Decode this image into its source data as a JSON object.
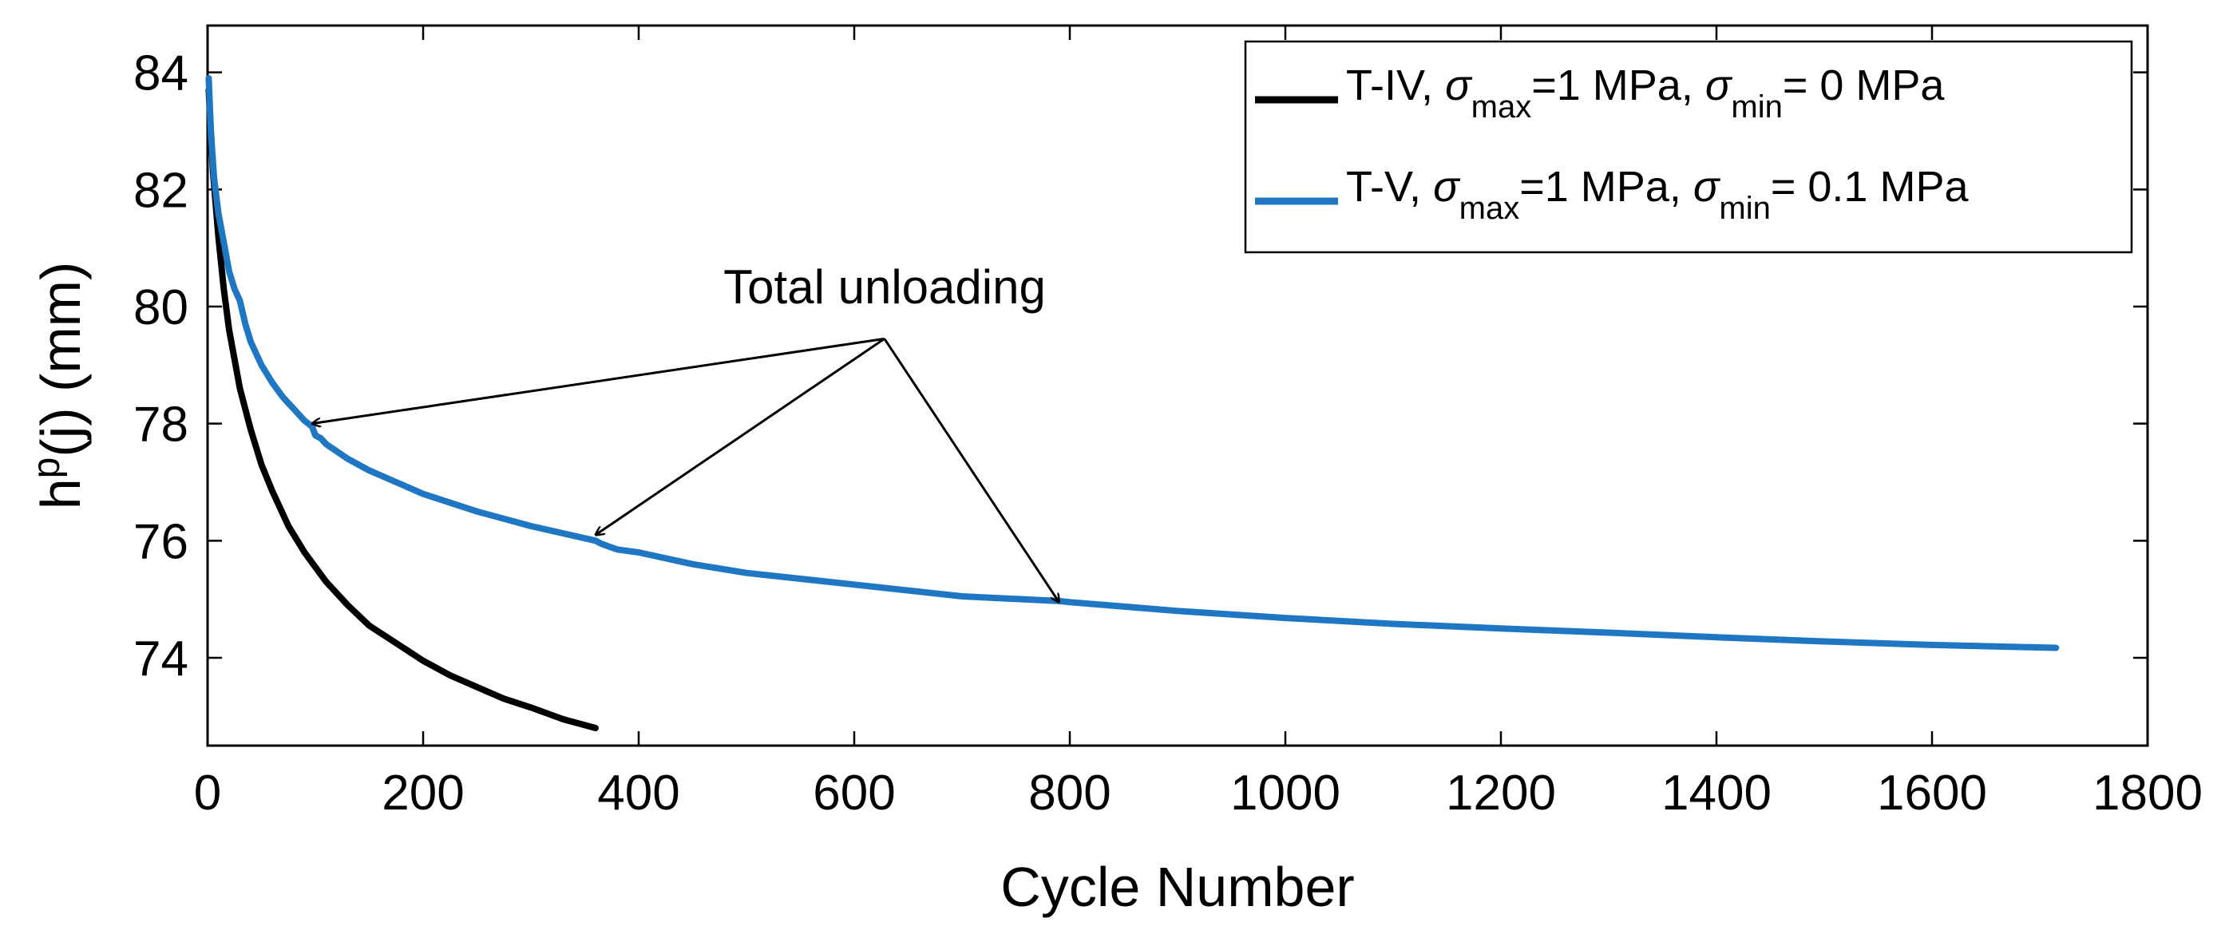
{
  "chart_data": {
    "type": "line",
    "title": "",
    "xlabel": "Cycle Number",
    "ylabel_base": "h",
    "ylabel_sup": "p",
    "ylabel_rest": "(j) (mm)",
    "xlim": [
      0,
      1800
    ],
    "ylim": [
      72.5,
      84.8
    ],
    "xticks": [
      0,
      200,
      400,
      600,
      800,
      1000,
      1200,
      1400,
      1600,
      1800
    ],
    "yticks": [
      74,
      76,
      78,
      80,
      82,
      84
    ],
    "legend_position": "top-right",
    "series": [
      {
        "name": "T-IV, σmax=1 MPa, σmin= 0 MPa",
        "legend_prefix": "T-IV, ",
        "legend_sym1": "σ",
        "legend_sub1": "max",
        "legend_mid": "=1 MPa, ",
        "legend_sym2": "σ",
        "legend_sub2": "min",
        "legend_suffix": "= 0 MPa",
        "color": "#000000",
        "x": [
          1,
          5,
          10,
          15,
          20,
          30,
          40,
          50,
          60,
          75,
          90,
          110,
          130,
          150,
          175,
          200,
          225,
          250,
          275,
          300,
          330,
          360
        ],
        "y": [
          83.7,
          82.3,
          81.2,
          80.3,
          79.6,
          78.6,
          77.9,
          77.3,
          76.85,
          76.25,
          75.8,
          75.3,
          74.9,
          74.55,
          74.25,
          73.95,
          73.7,
          73.5,
          73.3,
          73.15,
          72.95,
          72.8
        ]
      },
      {
        "name": "T-V, σmax=1 MPa, σmin= 0.1 MPa",
        "legend_prefix": "T-V, ",
        "legend_sym1": "σ",
        "legend_sub1": "max",
        "legend_mid": "=1 MPa, ",
        "legend_sym2": "σ",
        "legend_sub2": "min",
        "legend_suffix": "= 0.1 MPa",
        "color": "#1f77c4",
        "x": [
          1,
          3,
          6,
          10,
          15,
          20,
          25,
          30,
          35,
          40,
          50,
          60,
          70,
          80,
          90,
          97,
          100,
          105,
          110,
          130,
          150,
          175,
          200,
          250,
          300,
          360,
          365,
          380,
          400,
          450,
          500,
          600,
          700,
          790,
          800,
          900,
          1000,
          1100,
          1200,
          1300,
          1400,
          1500,
          1600,
          1715
        ],
        "y": [
          83.9,
          83.0,
          82.2,
          81.6,
          81.1,
          80.6,
          80.3,
          80.1,
          79.7,
          79.4,
          79.0,
          78.7,
          78.45,
          78.25,
          78.05,
          77.95,
          77.8,
          77.75,
          77.65,
          77.4,
          77.2,
          77.0,
          76.8,
          76.5,
          76.25,
          76.0,
          75.95,
          75.85,
          75.8,
          75.6,
          75.45,
          75.25,
          75.05,
          74.97,
          74.95,
          74.8,
          74.68,
          74.58,
          74.5,
          74.43,
          74.35,
          74.28,
          74.22,
          74.17
        ]
      }
    ],
    "annotation": {
      "text": "Total unloading",
      "origin": [
        628,
        79.45
      ],
      "targets": [
        [
          97,
          78.0
        ],
        [
          360,
          76.1
        ],
        [
          790,
          74.95
        ]
      ]
    }
  }
}
